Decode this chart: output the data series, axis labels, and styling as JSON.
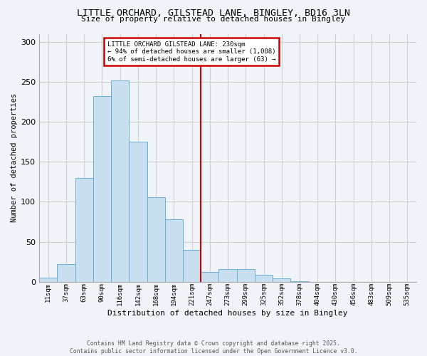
{
  "title": "LITTLE ORCHARD, GILSTEAD LANE, BINGLEY, BD16 3LN",
  "subtitle": "Size of property relative to detached houses in Bingley",
  "xlabel": "Distribution of detached houses by size in Bingley",
  "ylabel": "Number of detached properties",
  "bin_labels": [
    "11sqm",
    "37sqm",
    "63sqm",
    "90sqm",
    "116sqm",
    "142sqm",
    "168sqm",
    "194sqm",
    "221sqm",
    "247sqm",
    "273sqm",
    "299sqm",
    "325sqm",
    "352sqm",
    "378sqm",
    "404sqm",
    "430sqm",
    "456sqm",
    "483sqm",
    "509sqm",
    "535sqm"
  ],
  "bar_values": [
    5,
    22,
    130,
    232,
    252,
    175,
    106,
    78,
    40,
    12,
    16,
    16,
    9,
    4,
    1,
    0,
    0,
    0,
    0,
    0,
    0
  ],
  "bar_color": "#c8dff0",
  "bar_edge_color": "#6aaed6",
  "vline_x": 8.5,
  "vline_color": "#cc0000",
  "annotation_title": "LITTLE ORCHARD GILSTEAD LANE: 230sqm",
  "annotation_line1": "← 94% of detached houses are smaller (1,008)",
  "annotation_line2": "6% of semi-detached houses are larger (63) →",
  "annotation_box_color": "#cc0000",
  "grid_color": "#d0d0d0",
  "background_color": "#f0f4f8",
  "footnote1": "Contains HM Land Registry data © Crown copyright and database right 2025.",
  "footnote2": "Contains public sector information licensed under the Open Government Licence v3.0.",
  "ylim": [
    0,
    310
  ],
  "yticks": [
    0,
    50,
    100,
    150,
    200,
    250,
    300
  ]
}
